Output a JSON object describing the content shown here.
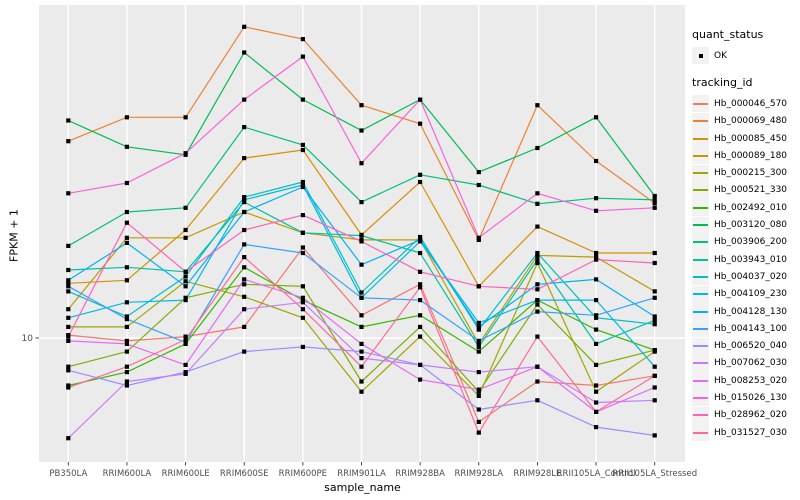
{
  "figure": {
    "y_axis_title": "FPKM + 1",
    "x_axis_title": "sample_name",
    "y_tick_label": "10"
  },
  "legend": {
    "quant_status": {
      "title": "quant_status",
      "ok_label": "OK",
      "marker_color": "#000000"
    },
    "tracking": {
      "title": "tracking_id"
    }
  },
  "chart_data": {
    "type": "line",
    "title": "",
    "xlabel": "sample_name",
    "ylabel": "FPKM + 1",
    "y_scale": "log10",
    "y_ticks": [
      10
    ],
    "y_range_approx": [
      4.2,
      100
    ],
    "grid": "major",
    "legend_position": "right",
    "point_marker": "black-square",
    "panel_color": "#EBEBEB",
    "categories": [
      "PB350LA",
      "RRIM600LA",
      "RRIM600LE",
      "RRIM600SE",
      "RRIM600PE",
      "RRIM901LA",
      "RRIM928BA",
      "RRIM928LA",
      "RRIM928LE",
      "RRII105LA_Control",
      "RRII105LA_Stressed"
    ],
    "series": [
      {
        "name": "Hb_000046_570",
        "color": "#F8766D",
        "values": [
          10.2,
          9.8,
          10.1,
          10.8,
          18.7,
          11.7,
          14.5,
          5.6,
          7.4,
          7.2,
          7.7
        ]
      },
      {
        "name": "Hb_000069_480",
        "color": "#EA8331",
        "values": [
          39,
          46,
          46,
          86,
          79,
          50,
          44,
          19.7,
          50,
          34,
          25.4
        ]
      },
      {
        "name": "Hb_000085_450",
        "color": "#D89000",
        "values": [
          14.6,
          14.9,
          21.1,
          34.7,
          36.7,
          20.4,
          29.4,
          14.3,
          21.6,
          18,
          18
        ]
      },
      {
        "name": "Hb_000089_180",
        "color": "#C09B00",
        "values": [
          12.2,
          20,
          20,
          23.9,
          20.7,
          19.7,
          19.7,
          9.6,
          17.7,
          17.5,
          13.8
        ]
      },
      {
        "name": "Hb_000215_300",
        "color": "#A3A500",
        "values": [
          10.8,
          10.8,
          14.8,
          13.3,
          11.5,
          6.9,
          10.1,
          6.7,
          16.8,
          6.9,
          9.1
        ]
      },
      {
        "name": "Hb_000521_330",
        "color": "#7CAE00",
        "values": [
          8.2,
          9.1,
          13.2,
          14.5,
          14.3,
          7.4,
          10.8,
          6.9,
          12.6,
          8.3,
          9.2
        ]
      },
      {
        "name": "Hb_002492_010",
        "color": "#39B600",
        "values": [
          7.2,
          7.9,
          9.6,
          16.3,
          13,
          10.8,
          11.7,
          9.1,
          13,
          10.6,
          9.2
        ]
      },
      {
        "name": "Hb_003120_080",
        "color": "#00BB4E",
        "values": [
          45,
          37.5,
          35.5,
          72,
          52,
          42,
          52,
          31.5,
          37.2,
          46,
          26.7
        ]
      },
      {
        "name": "Hb_003906_200",
        "color": "#00BF7D",
        "values": [
          18.9,
          23.9,
          24.6,
          43,
          38,
          25.6,
          30.9,
          28.8,
          25.3,
          26.3,
          26
        ]
      },
      {
        "name": "Hb_003943_010",
        "color": "#00C1A3",
        "values": [
          16,
          16.3,
          15.8,
          25.6,
          20.7,
          20.3,
          18,
          9.4,
          17.2,
          9.6,
          11.3
        ]
      },
      {
        "name": "Hb_004037_020",
        "color": "#00BFC4",
        "values": [
          13.8,
          11.6,
          15.3,
          26.5,
          29.4,
          13.7,
          20.1,
          10.6,
          18,
          11.5,
          11
        ]
      },
      {
        "name": "Hb_004109_230",
        "color": "#00BAE0",
        "values": [
          11.5,
          12.8,
          13,
          26,
          28.8,
          13.2,
          19.5,
          11.1,
          13,
          13,
          8.2
        ]
      },
      {
        "name": "Hb_004128_130",
        "color": "#00B0F6",
        "values": [
          14.9,
          19.3,
          14.3,
          23.9,
          28.4,
          16.6,
          19.7,
          10.8,
          14.5,
          15,
          11.6
        ]
      },
      {
        "name": "Hb_004143_100",
        "color": "#35A2FF",
        "values": [
          14.3,
          11.4,
          9.7,
          19.1,
          18,
          13.2,
          13,
          9.8,
          12,
          11.7,
          13.2
        ]
      },
      {
        "name": "Hb_006520_040",
        "color": "#9590FF",
        "values": [
          8,
          7.2,
          7.9,
          9.1,
          9.4,
          9.1,
          8.3,
          6.1,
          6.5,
          5.4,
          5.1
        ]
      },
      {
        "name": "Hb_007062_030",
        "color": "#C77CFF",
        "values": [
          5,
          7.4,
          7.8,
          12.2,
          12.8,
          8.7,
          8.3,
          7.9,
          8.2,
          6.4,
          6.5
        ]
      },
      {
        "name": "Hb_008253_020",
        "color": "#E76BF3",
        "values": [
          9.8,
          9.6,
          8.3,
          15,
          13.2,
          9.6,
          7.5,
          7,
          8.2,
          6,
          7.1
        ]
      },
      {
        "name": "Hb_015026_130",
        "color": "#FA62DB",
        "values": [
          27.2,
          29.2,
          35.9,
          52,
          70,
          33.5,
          52,
          20,
          27.2,
          24.1,
          24.6
        ]
      },
      {
        "name": "Hb_028962_020",
        "color": "#FF62BC",
        "values": [
          10.1,
          22.2,
          15.8,
          21.1,
          23.4,
          19.5,
          15.8,
          14.3,
          14,
          17.2,
          16.8
        ]
      },
      {
        "name": "Hb_031527_030",
        "color": "#FF6A98",
        "values": [
          7.1,
          8.2,
          9.9,
          17.5,
          12.2,
          8.2,
          14.2,
          5.2,
          10.1,
          6,
          7.7
        ]
      }
    ]
  }
}
